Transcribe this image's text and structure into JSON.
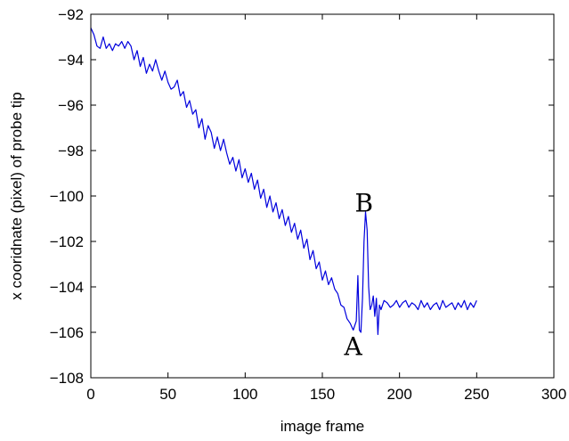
{
  "chart_data": {
    "type": "line",
    "title": "",
    "xlabel": "image frame",
    "ylabel": "x cooridnate (pixel) of probe tip",
    "xlim": [
      0,
      300
    ],
    "ylim": [
      -108,
      -92
    ],
    "xticks": [
      0,
      50,
      100,
      150,
      200,
      250,
      300
    ],
    "yticks": [
      -108,
      -106,
      -104,
      -102,
      -100,
      -98,
      -96,
      -94,
      -92
    ],
    "xtick_labels": [
      "0",
      "50",
      "100",
      "150",
      "200",
      "250",
      "300"
    ],
    "ytick_labels": [
      "−108",
      "−106",
      "−104",
      "−102",
      "−100",
      "−98",
      "−96",
      "−94",
      "−92"
    ],
    "grid": false,
    "legend": null,
    "series_color": "#0000dd",
    "series": [
      {
        "x": [
          0,
          2,
          4,
          6,
          8,
          10,
          12,
          14,
          16,
          18,
          20,
          22,
          24,
          26,
          28,
          30,
          32,
          34,
          36,
          38,
          40,
          42,
          44,
          46,
          48,
          50,
          52,
          54,
          56,
          58,
          60,
          62,
          64,
          66,
          68,
          70,
          72,
          74,
          76,
          78,
          80,
          82,
          84,
          86,
          88,
          90,
          92,
          94,
          96,
          98,
          100,
          102,
          104,
          106,
          108,
          110,
          112,
          114,
          116,
          118,
          120,
          122,
          124,
          126,
          128,
          130,
          132,
          134,
          136,
          138,
          140,
          142,
          144,
          146,
          148,
          150,
          152,
          154,
          156,
          158,
          160,
          162,
          164,
          166,
          168,
          170,
          172,
          173,
          174,
          175,
          176,
          177,
          178,
          179,
          180,
          181,
          182,
          183,
          184,
          185,
          186,
          187,
          188,
          190,
          192,
          194,
          196,
          198,
          200,
          202,
          204,
          206,
          208,
          210,
          212,
          214,
          216,
          218,
          220,
          222,
          224,
          226,
          228,
          230,
          232,
          234,
          236,
          238,
          240,
          242,
          244,
          246,
          248,
          250
        ],
        "y": [
          -92.6,
          -92.9,
          -93.4,
          -93.5,
          -93.0,
          -93.5,
          -93.3,
          -93.6,
          -93.3,
          -93.4,
          -93.2,
          -93.5,
          -93.2,
          -93.4,
          -94.0,
          -93.6,
          -94.3,
          -93.9,
          -94.6,
          -94.2,
          -94.5,
          -94.0,
          -94.5,
          -94.9,
          -94.5,
          -95.0,
          -95.3,
          -95.2,
          -94.9,
          -95.6,
          -95.4,
          -96.1,
          -95.8,
          -96.4,
          -96.2,
          -97.0,
          -96.6,
          -97.5,
          -96.9,
          -97.2,
          -97.9,
          -97.4,
          -98.0,
          -97.5,
          -98.1,
          -98.6,
          -98.3,
          -98.9,
          -98.4,
          -99.2,
          -98.8,
          -99.4,
          -99.0,
          -99.7,
          -99.3,
          -100.1,
          -99.7,
          -100.5,
          -100.0,
          -100.7,
          -100.3,
          -101.0,
          -100.6,
          -101.3,
          -100.9,
          -101.6,
          -101.2,
          -101.9,
          -101.5,
          -102.3,
          -101.9,
          -102.8,
          -102.4,
          -103.2,
          -102.9,
          -103.7,
          -103.3,
          -103.9,
          -103.6,
          -104.1,
          -104.3,
          -104.8,
          -104.9,
          -105.4,
          -105.6,
          -105.9,
          -105.5,
          -103.5,
          -105.9,
          -106.0,
          -104.5,
          -102.0,
          -100.7,
          -101.5,
          -104.0,
          -105.0,
          -104.8,
          -104.4,
          -105.3,
          -104.5,
          -106.1,
          -104.8,
          -105.0,
          -104.6,
          -104.7,
          -104.9,
          -104.8,
          -104.6,
          -104.9,
          -104.7,
          -104.6,
          -104.9,
          -104.7,
          -104.8,
          -105.0,
          -104.6,
          -104.9,
          -104.7,
          -105.0,
          -104.8,
          -104.7,
          -105.0,
          -104.6,
          -104.9,
          -104.8,
          -104.7,
          -105.0,
          -104.7,
          -104.9,
          -104.6,
          -105.0,
          -104.7,
          -104.9,
          -104.6
        ]
      }
    ],
    "annotations": [
      {
        "text": "A",
        "x": 170,
        "y": -106.6
      },
      {
        "text": "B",
        "x": 177,
        "y": -100.3
      }
    ]
  }
}
